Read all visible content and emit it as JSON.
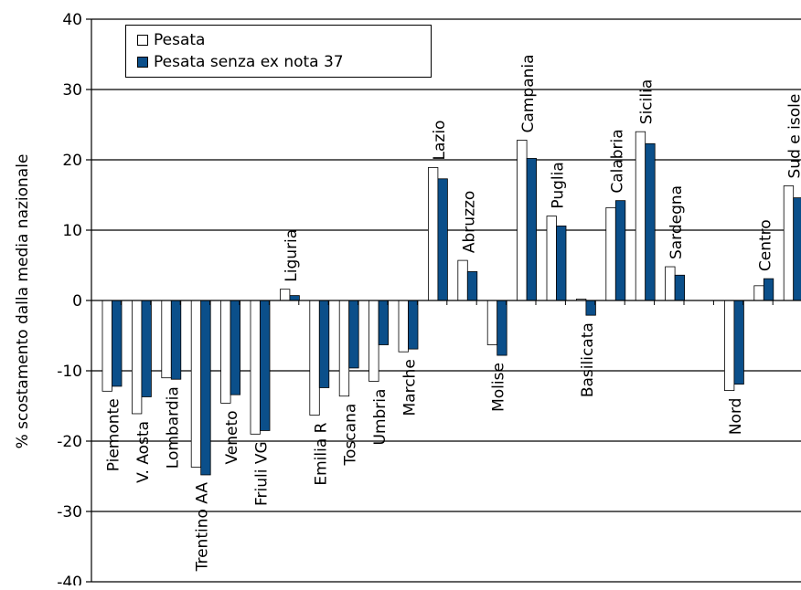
{
  "chart_data": {
    "type": "bar",
    "title": "",
    "xlabel": "",
    "ylabel": "% scostamento dalla media nazionale",
    "ylim": [
      -40,
      40
    ],
    "yticks": [
      -40,
      -30,
      -20,
      -10,
      0,
      10,
      20,
      30,
      40
    ],
    "ytick_labels": [
      "-40",
      "-30",
      "-20",
      "-10",
      "0",
      "10",
      "20",
      "30",
      "40"
    ],
    "grid": true,
    "legend_position": "top-left",
    "categories": [
      "Piemonte",
      "V. Aosta",
      "Lombardia",
      "Trentino AA",
      "Veneto",
      "Friuli VG",
      "Liguria",
      "Emilia R",
      "Toscana",
      "Umbria",
      "Marche",
      "Lazio",
      "Abruzzo",
      "Molise",
      "Campania",
      "Puglia",
      "Basilicata",
      "Calabria",
      "Sicilia",
      "Sardegna",
      "",
      "Nord",
      "Centro",
      "Sud e isole"
    ],
    "series": [
      {
        "name": "Pesata",
        "color": "#ffffff",
        "values": [
          -12.9,
          -16.1,
          -11.0,
          -23.7,
          -14.6,
          -19.0,
          1.6,
          -16.3,
          -13.6,
          -11.5,
          -7.3,
          18.9,
          5.7,
          -6.3,
          22.8,
          12.0,
          0.2,
          13.2,
          24.0,
          4.8,
          null,
          -12.8,
          2.1,
          16.3
        ]
      },
      {
        "name": "Pesata senza ex nota 37",
        "color": "#0b4f8a",
        "values": [
          -12.2,
          -13.7,
          -11.2,
          -24.8,
          -13.4,
          -18.5,
          0.7,
          -12.4,
          -9.6,
          -6.3,
          -6.9,
          17.3,
          4.1,
          -7.8,
          20.2,
          10.6,
          -2.1,
          14.2,
          22.3,
          3.6,
          null,
          -11.9,
          3.1,
          14.6
        ]
      }
    ]
  }
}
